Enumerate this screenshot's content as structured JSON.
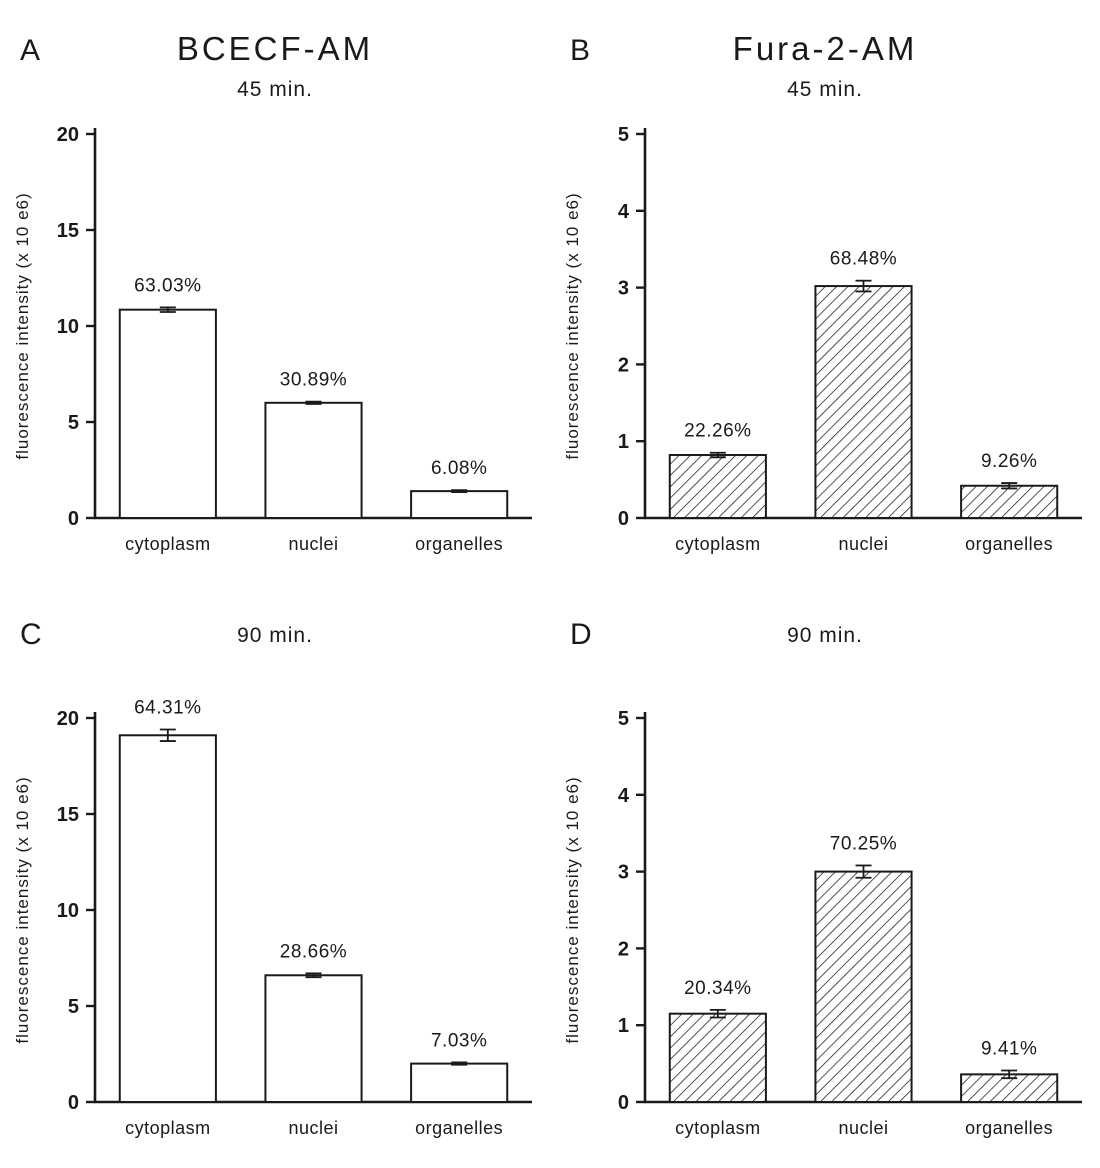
{
  "figure": {
    "background": "#ffffff",
    "ink": "#1a1a1a"
  },
  "chart_data": [
    {
      "panel": "A",
      "type": "bar",
      "title": "BCECF-AM",
      "subtitle": "45 min.",
      "ylabel": "fluorescence intensity (x 10 e6)",
      "categories": [
        "cytoplasm",
        "nuclei",
        "organelles"
      ],
      "values": [
        10.85,
        6.0,
        1.4
      ],
      "errors": [
        0.12,
        0.06,
        0.05
      ],
      "bar_labels": [
        "63.03%",
        "30.89%",
        "6.08%"
      ],
      "ylim": [
        0,
        20
      ],
      "yticks": [
        0,
        5,
        10,
        15,
        20
      ],
      "fill": "solid-white",
      "grid": false,
      "legend": "none"
    },
    {
      "panel": "B",
      "type": "bar",
      "title": "Fura-2-AM",
      "subtitle": "45 min.",
      "ylabel": "fluorescence intensity (x 10 e6)",
      "categories": [
        "cytoplasm",
        "nuclei",
        "organelles"
      ],
      "values": [
        0.82,
        3.02,
        0.42
      ],
      "errors": [
        0.03,
        0.07,
        0.035
      ],
      "bar_labels": [
        "22.26%",
        "68.48%",
        "9.26%"
      ],
      "ylim": [
        0,
        5
      ],
      "yticks": [
        0,
        1,
        2,
        3,
        4,
        5
      ],
      "fill": "hatch",
      "grid": false,
      "legend": "none"
    },
    {
      "panel": "C",
      "type": "bar",
      "title": "",
      "subtitle": "90 min.",
      "ylabel": "fluorescence intensity (x 10 e6)",
      "categories": [
        "cytoplasm",
        "nuclei",
        "organelles"
      ],
      "values": [
        19.1,
        6.6,
        2.0
      ],
      "errors": [
        0.3,
        0.1,
        0.06
      ],
      "bar_labels": [
        "64.31%",
        "28.66%",
        "7.03%"
      ],
      "ylim": [
        0,
        20
      ],
      "yticks": [
        0,
        5,
        10,
        15,
        20
      ],
      "fill": "solid-white",
      "grid": false,
      "legend": "none"
    },
    {
      "panel": "D",
      "type": "bar",
      "title": "",
      "subtitle": "90 min.",
      "ylabel": "fluorescence intensity (x 10 e6)",
      "categories": [
        "cytoplasm",
        "nuclei",
        "organelles"
      ],
      "values": [
        1.15,
        3.0,
        0.36
      ],
      "errors": [
        0.05,
        0.08,
        0.05
      ],
      "bar_labels": [
        "20.34%",
        "70.25%",
        "9.41%"
      ],
      "ylim": [
        0,
        5
      ],
      "yticks": [
        0,
        1,
        2,
        3,
        4,
        5
      ],
      "fill": "hatch",
      "grid": false,
      "legend": "none"
    }
  ]
}
